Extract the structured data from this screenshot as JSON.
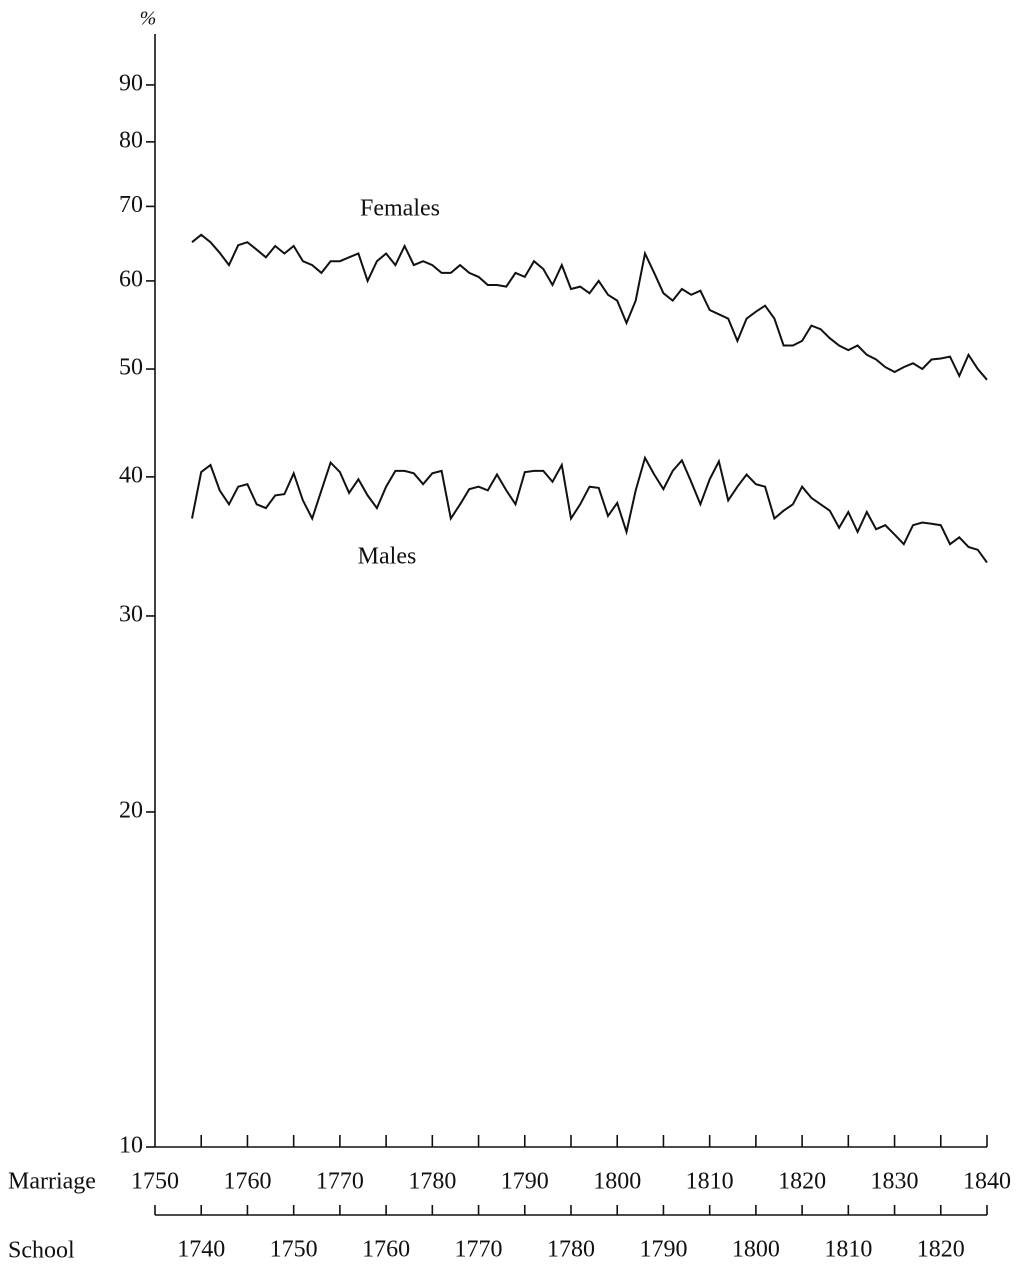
{
  "chart_data": {
    "type": "line",
    "y_label": "%",
    "x_label": "Marriage",
    "x2_label": "School",
    "log_scale": true,
    "ylim": [
      10,
      100
    ],
    "yticks": [
      10,
      20,
      30,
      40,
      50,
      60,
      70,
      80,
      90
    ],
    "xlim": [
      1750,
      1840
    ],
    "xticks": [
      1750,
      1760,
      1770,
      1780,
      1790,
      1800,
      1810,
      1820,
      1830,
      1840
    ],
    "x2lim": [
      1735,
      1825
    ],
    "x2ticks": [
      1740,
      1750,
      1760,
      1770,
      1780,
      1790,
      1800,
      1810,
      1820
    ],
    "x": [
      1754,
      1755,
      1756,
      1757,
      1758,
      1759,
      1760,
      1761,
      1762,
      1763,
      1764,
      1765,
      1766,
      1767,
      1768,
      1769,
      1770,
      1771,
      1772,
      1773,
      1774,
      1775,
      1776,
      1777,
      1778,
      1779,
      1780,
      1781,
      1782,
      1783,
      1784,
      1785,
      1786,
      1787,
      1788,
      1789,
      1790,
      1791,
      1792,
      1793,
      1794,
      1795,
      1796,
      1797,
      1798,
      1799,
      1800,
      1801,
      1802,
      1803,
      1804,
      1805,
      1806,
      1807,
      1808,
      1809,
      1810,
      1811,
      1812,
      1813,
      1814,
      1815,
      1816,
      1817,
      1818,
      1819,
      1820,
      1821,
      1822,
      1823,
      1824,
      1825,
      1826,
      1827,
      1828,
      1829,
      1830,
      1831,
      1832,
      1833,
      1834,
      1835,
      1836,
      1837,
      1838,
      1839,
      1840
    ],
    "series": [
      {
        "name": "Females",
        "color": "#111111",
        "values": [
          65,
          66,
          65,
          63.6,
          62,
          64.6,
          65,
          64,
          63,
          64.5,
          63.5,
          64.5,
          62.5,
          62,
          61,
          62.5,
          62.5,
          63,
          63.5,
          60,
          62.5,
          63.5,
          62,
          64.5,
          62,
          62.5,
          62,
          61,
          61,
          62,
          61,
          60.5,
          59.5,
          59.5,
          59.3,
          61,
          60.5,
          62.5,
          61.5,
          59.5,
          62,
          59,
          59.3,
          58.5,
          60,
          58.3,
          57.6,
          55,
          57.6,
          63.5,
          61,
          58.5,
          57.6,
          59,
          58.3,
          58.8,
          56.5,
          56,
          55.5,
          53,
          55.5,
          56.3,
          57,
          55.5,
          52.5,
          52.5,
          53,
          54.7,
          54.3,
          53.3,
          52.5,
          52,
          52.5,
          51.5,
          51,
          50.2,
          49.7,
          50.2,
          50.6,
          50,
          51,
          51.1,
          51.3,
          49.3,
          51.5,
          50,
          48.9
        ]
      },
      {
        "name": "Males",
        "color": "#111111",
        "values": [
          36.7,
          40.4,
          41,
          38.9,
          37.8,
          39.2,
          39.4,
          37.8,
          37.5,
          38.5,
          38.6,
          40.3,
          38.1,
          36.7,
          38.9,
          41.2,
          40.4,
          38.7,
          39.8,
          38.5,
          37.5,
          39.2,
          40.5,
          40.5,
          40.3,
          39.4,
          40.3,
          40.5,
          36.7,
          37.8,
          39,
          39.2,
          38.9,
          40.2,
          38.9,
          37.8,
          40.4,
          40.5,
          40.5,
          39.6,
          41,
          36.7,
          37.8,
          39.2,
          39.1,
          36.9,
          37.9,
          35.7,
          38.9,
          41.6,
          40.2,
          39,
          40.5,
          41.4,
          39.6,
          37.8,
          39.8,
          41.3,
          38.1,
          39.2,
          40.2,
          39.4,
          39.2,
          36.7,
          37.3,
          37.8,
          39.2,
          38.3,
          37.8,
          37.3,
          36,
          37.2,
          35.7,
          37.2,
          35.9,
          36.2,
          35.5,
          34.8,
          36.2,
          36.4,
          36.3,
          36.2,
          34.8,
          35.3,
          34.6,
          34.4,
          33.5
        ]
      }
    ]
  }
}
